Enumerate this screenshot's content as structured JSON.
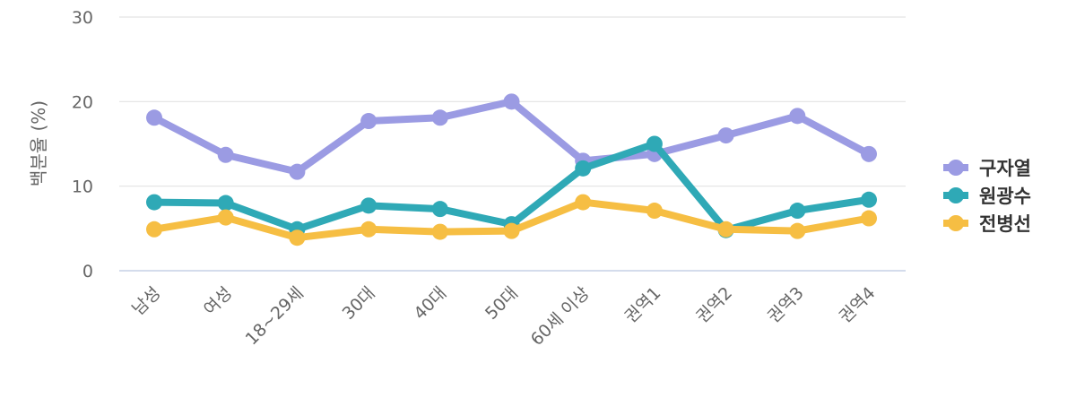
{
  "chart_data": {
    "type": "line",
    "title": "",
    "xlabel": "",
    "ylabel": "백분율 (%)",
    "ylim": [
      0,
      30
    ],
    "yticks": [
      0,
      10,
      20,
      30
    ],
    "grid": true,
    "legend_position": "right",
    "categories": [
      "남성",
      "여성",
      "18~29세",
      "30대",
      "40대",
      "50대",
      "60세 이상",
      "권역1",
      "권역2",
      "권역3",
      "권역4"
    ],
    "series": [
      {
        "name": "구자열",
        "color": "#9b9be3",
        "values": [
          18.1,
          13.7,
          11.7,
          17.7,
          18.1,
          20.0,
          13.0,
          13.8,
          16.0,
          18.3,
          13.8
        ]
      },
      {
        "name": "원광수",
        "color": "#2fa9b6",
        "values": [
          8.1,
          8.0,
          4.9,
          7.7,
          7.3,
          5.5,
          12.1,
          15.0,
          4.8,
          7.1,
          8.4
        ]
      },
      {
        "name": "전병선",
        "color": "#f6be43",
        "values": [
          4.9,
          6.3,
          3.9,
          4.9,
          4.6,
          4.7,
          8.1,
          7.1,
          4.9,
          4.7,
          6.2
        ]
      }
    ]
  }
}
